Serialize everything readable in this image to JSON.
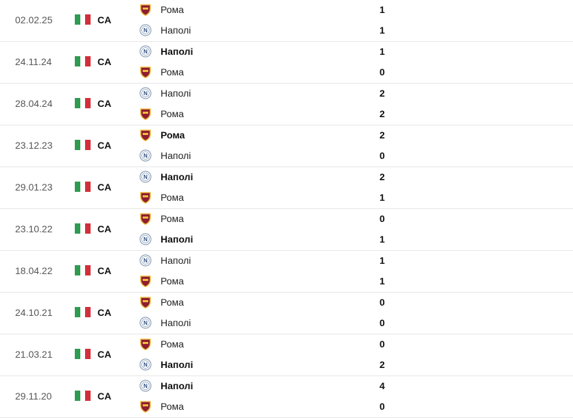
{
  "competition": "CA",
  "flag_colors": [
    "#2e9c50",
    "#ffffff",
    "#d32f3a"
  ],
  "matches": [
    {
      "date": "02.02.25",
      "home": {
        "team": "Рома",
        "logo": "roma-crest",
        "score": "1",
        "win": false
      },
      "away": {
        "team": "Наполі",
        "logo": "napoli-crest",
        "score": "1",
        "win": false
      }
    },
    {
      "date": "24.11.24",
      "home": {
        "team": "Наполі",
        "logo": "napoli-crest",
        "score": "1",
        "win": true
      },
      "away": {
        "team": "Рома",
        "logo": "roma-crest",
        "score": "0",
        "win": false
      }
    },
    {
      "date": "28.04.24",
      "home": {
        "team": "Наполі",
        "logo": "napoli-crest",
        "score": "2",
        "win": false
      },
      "away": {
        "team": "Рома",
        "logo": "roma-crest",
        "score": "2",
        "win": false
      }
    },
    {
      "date": "23.12.23",
      "home": {
        "team": "Рома",
        "logo": "roma-crest",
        "score": "2",
        "win": true
      },
      "away": {
        "team": "Наполі",
        "logo": "napoli-crest",
        "score": "0",
        "win": false
      }
    },
    {
      "date": "29.01.23",
      "home": {
        "team": "Наполі",
        "logo": "napoli-crest",
        "score": "2",
        "win": true
      },
      "away": {
        "team": "Рома",
        "logo": "roma-crest",
        "score": "1",
        "win": false
      }
    },
    {
      "date": "23.10.22",
      "home": {
        "team": "Рома",
        "logo": "roma-crest",
        "score": "0",
        "win": false
      },
      "away": {
        "team": "Наполі",
        "logo": "napoli-crest",
        "score": "1",
        "win": true
      }
    },
    {
      "date": "18.04.22",
      "home": {
        "team": "Наполі",
        "logo": "napoli-crest",
        "score": "1",
        "win": false
      },
      "away": {
        "team": "Рома",
        "logo": "roma-crest",
        "score": "1",
        "win": false
      }
    },
    {
      "date": "24.10.21",
      "home": {
        "team": "Рома",
        "logo": "roma-crest",
        "score": "0",
        "win": false
      },
      "away": {
        "team": "Наполі",
        "logo": "napoli-crest",
        "score": "0",
        "win": false
      }
    },
    {
      "date": "21.03.21",
      "home": {
        "team": "Рома",
        "logo": "roma-crest",
        "score": "0",
        "win": false
      },
      "away": {
        "team": "Наполі",
        "logo": "napoli-crest",
        "score": "2",
        "win": true
      }
    },
    {
      "date": "29.11.20",
      "home": {
        "team": "Наполі",
        "logo": "napoli-crest",
        "score": "4",
        "win": true
      },
      "away": {
        "team": "Рома",
        "logo": "roma-crest",
        "score": "0",
        "win": false
      }
    }
  ]
}
